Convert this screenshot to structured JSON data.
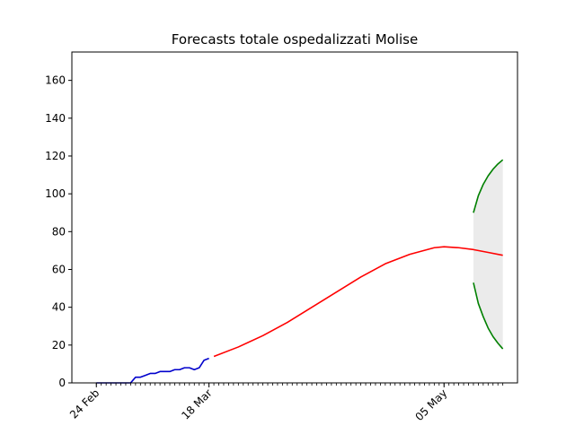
{
  "chart_data": {
    "type": "line",
    "title": "Forecasts totale ospedalizzati Molise",
    "xlabel": "",
    "ylabel": "",
    "x_axis": {
      "kind": "date",
      "xlim": [
        "2020-02-19",
        "2020-05-20"
      ],
      "tick_labels": [
        {
          "date": "2020-02-24",
          "label": "24 Feb"
        },
        {
          "date": "2020-03-18",
          "label": "18 Mar"
        },
        {
          "date": "2020-05-05",
          "label": "05 May"
        }
      ]
    },
    "ylim": [
      0,
      175
    ],
    "yticks": [
      0,
      20,
      40,
      60,
      80,
      100,
      120,
      140,
      160
    ],
    "grid": false,
    "legend": "none",
    "series": [
      {
        "color": "#0000cc",
        "points": [
          [
            "2020-02-24",
            0
          ],
          [
            "2020-02-25",
            0
          ],
          [
            "2020-02-26",
            0
          ],
          [
            "2020-02-27",
            0
          ],
          [
            "2020-02-28",
            0
          ],
          [
            "2020-02-29",
            0
          ],
          [
            "2020-03-01",
            0
          ],
          [
            "2020-03-02",
            0
          ],
          [
            "2020-03-03",
            3
          ],
          [
            "2020-03-04",
            3
          ],
          [
            "2020-03-05",
            4
          ],
          [
            "2020-03-06",
            5
          ],
          [
            "2020-03-07",
            5
          ],
          [
            "2020-03-08",
            6
          ],
          [
            "2020-03-09",
            6
          ],
          [
            "2020-03-10",
            6
          ],
          [
            "2020-03-11",
            7
          ],
          [
            "2020-03-12",
            7
          ],
          [
            "2020-03-13",
            8
          ],
          [
            "2020-03-14",
            8
          ],
          [
            "2020-03-15",
            7
          ],
          [
            "2020-03-16",
            8
          ],
          [
            "2020-03-17",
            12
          ],
          [
            "2020-03-18",
            13
          ]
        ]
      },
      {
        "color": "#ff0000",
        "points": [
          [
            "2020-03-19",
            14
          ],
          [
            "2020-03-24",
            19
          ],
          [
            "2020-03-29",
            25
          ],
          [
            "2020-04-03",
            32
          ],
          [
            "2020-04-08",
            40
          ],
          [
            "2020-04-13",
            48
          ],
          [
            "2020-04-18",
            56
          ],
          [
            "2020-04-23",
            63
          ],
          [
            "2020-04-28",
            68
          ],
          [
            "2020-05-03",
            71.5
          ],
          [
            "2020-05-05",
            72
          ],
          [
            "2020-05-08",
            71.5
          ],
          [
            "2020-05-11",
            70.5
          ],
          [
            "2020-05-14",
            69
          ],
          [
            "2020-05-17",
            67.5
          ]
        ]
      },
      {
        "color": "#008000",
        "points": [
          [
            "2020-05-11",
            90
          ],
          [
            "2020-05-12",
            99
          ],
          [
            "2020-05-13",
            105
          ],
          [
            "2020-05-14",
            109.5
          ],
          [
            "2020-05-15",
            113
          ],
          [
            "2020-05-16",
            115.8
          ],
          [
            "2020-05-17",
            118
          ]
        ]
      },
      {
        "color": "#008000",
        "points": [
          [
            "2020-05-11",
            53
          ],
          [
            "2020-05-12",
            42
          ],
          [
            "2020-05-13",
            35
          ],
          [
            "2020-05-14",
            29
          ],
          [
            "2020-05-15",
            24.5
          ],
          [
            "2020-05-16",
            21
          ],
          [
            "2020-05-17",
            18
          ]
        ]
      }
    ],
    "confidence_band": {
      "color": "#ebebeb",
      "x": [
        "2020-05-11",
        "2020-05-12",
        "2020-05-13",
        "2020-05-14",
        "2020-05-15",
        "2020-05-16",
        "2020-05-17"
      ],
      "upper": [
        90,
        99,
        105,
        109.5,
        113,
        115.8,
        118
      ],
      "lower": [
        53,
        42,
        35,
        29,
        24.5,
        21,
        18
      ]
    }
  }
}
